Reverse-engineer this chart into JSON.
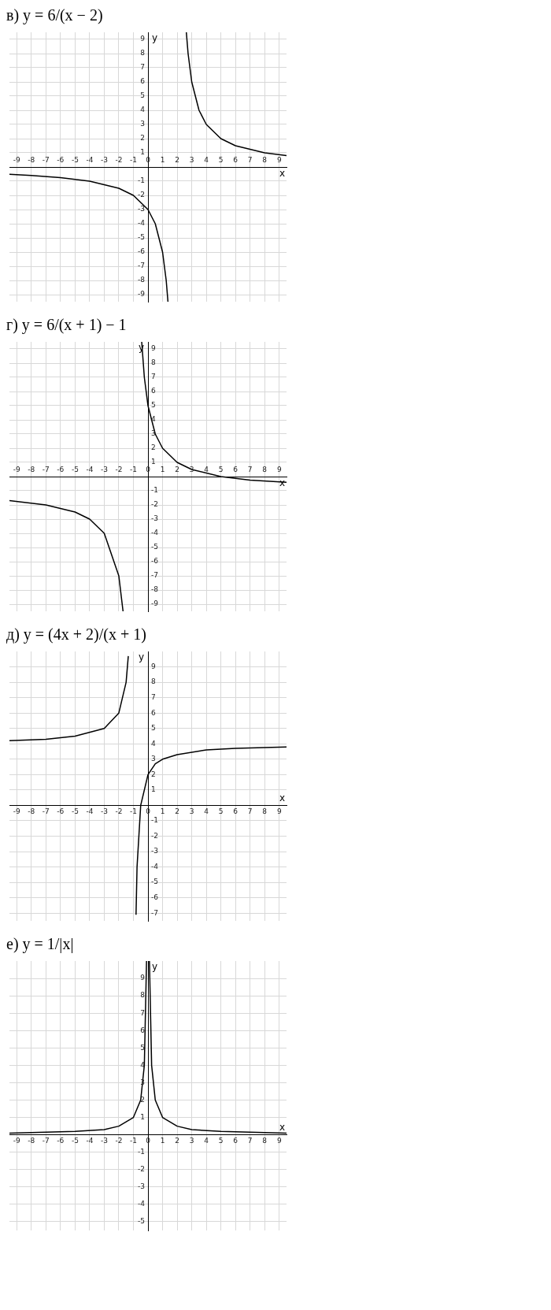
{
  "chart_data": [
    {
      "type": "line",
      "title": "в) y = 6/(x − 2)",
      "xlabel": "x",
      "ylabel": "y",
      "xlim": [
        -9.5,
        9.5
      ],
      "ylim": [
        -9.5,
        9.5
      ],
      "xticks": [
        -9,
        -8,
        -7,
        -6,
        -5,
        -4,
        -3,
        -2,
        -1,
        0,
        1,
        2,
        3,
        4,
        5,
        6,
        7,
        8,
        9
      ],
      "yticks": [
        -9,
        -8,
        -7,
        -6,
        -5,
        -4,
        -3,
        -2,
        -1,
        1,
        2,
        3,
        4,
        5,
        6,
        7,
        8,
        9
      ],
      "grid": true,
      "legend": false,
      "marker": "none",
      "series": [
        {
          "color": "#000000",
          "x": [
            -9.5,
            -8,
            -6,
            -4,
            -2,
            -1,
            0,
            0.5,
            1,
            1.25,
            1.37
          ],
          "values": [
            -0.52,
            -0.6,
            -0.75,
            -1,
            -1.5,
            -2,
            -3,
            -4,
            -6,
            -8,
            -9.5
          ]
        },
        {
          "color": "#000000",
          "x": [
            2.63,
            2.75,
            3,
            3.5,
            4,
            5,
            6,
            8,
            9.5
          ],
          "values": [
            9.5,
            8,
            6,
            4,
            3,
            2,
            1.5,
            1,
            0.8
          ]
        }
      ]
    },
    {
      "type": "line",
      "title": "г) y = 6/(x + 1) − 1",
      "xlabel": "x",
      "ylabel": "y",
      "xlim": [
        -9.5,
        9.5
      ],
      "ylim": [
        -9.5,
        9.5
      ],
      "xticks": [
        -9,
        -8,
        -7,
        -6,
        -5,
        -4,
        -3,
        -2,
        -1,
        0,
        1,
        2,
        3,
        4,
        5,
        6,
        7,
        8,
        9
      ],
      "yticks": [
        -9,
        -8,
        -7,
        -6,
        -5,
        -4,
        -3,
        -2,
        -1,
        1,
        2,
        3,
        4,
        5,
        6,
        7,
        8,
        9
      ],
      "grid": true,
      "legend": false,
      "marker": "none",
      "series": [
        {
          "color": "#000000",
          "x": [
            -9.5,
            -7,
            -5,
            -4,
            -3,
            -2,
            -1.71
          ],
          "values": [
            -1.7,
            -2,
            -2.5,
            -3,
            -4,
            -7,
            -9.5
          ]
        },
        {
          "color": "#000000",
          "x": [
            -0.43,
            -0.25,
            0,
            0.5,
            1,
            2,
            3,
            5,
            7,
            9.5
          ],
          "values": [
            9.5,
            7,
            5,
            3,
            2,
            1,
            0.5,
            0,
            -0.25,
            -0.4
          ]
        }
      ]
    },
    {
      "type": "line",
      "title": "д) y = (4x + 2)/(x + 1)",
      "xlabel": "x",
      "ylabel": "y",
      "xlim": [
        -9.5,
        9.5
      ],
      "ylim": [
        -7.5,
        10
      ],
      "xticks": [
        -9,
        -8,
        -7,
        -6,
        -5,
        -4,
        -3,
        -2,
        -1,
        0,
        1,
        2,
        3,
        4,
        5,
        6,
        7,
        8,
        9
      ],
      "yticks": [
        -7,
        -6,
        -5,
        -4,
        -3,
        -2,
        -1,
        1,
        2,
        3,
        4,
        5,
        6,
        7,
        8,
        9
      ],
      "grid": true,
      "legend": false,
      "marker": "none",
      "series": [
        {
          "color": "#000000",
          "x": [
            -9.5,
            -7,
            -5,
            -3,
            -2,
            -1.5,
            -1.35
          ],
          "values": [
            4.2,
            4.3,
            4.5,
            5,
            6,
            8,
            9.7
          ]
        },
        {
          "color": "#000000",
          "x": [
            -0.82,
            -0.75,
            -0.5,
            0,
            0.5,
            1,
            2,
            4,
            6,
            9.5
          ],
          "values": [
            -7.1,
            -4,
            0,
            2,
            2.7,
            3,
            3.3,
            3.6,
            3.7,
            3.8
          ]
        }
      ]
    },
    {
      "type": "line",
      "title": "е) y = 1/|x|",
      "xlabel": "x",
      "ylabel": "y",
      "xlim": [
        -9.5,
        9.5
      ],
      "ylim": [
        -5.5,
        10
      ],
      "xticks": [
        -9,
        -8,
        -7,
        -6,
        -5,
        -4,
        -3,
        -2,
        -1,
        0,
        1,
        2,
        3,
        4,
        5,
        6,
        7,
        8,
        9
      ],
      "yticks": [
        -5,
        -4,
        -3,
        -2,
        -1,
        1,
        2,
        3,
        4,
        5,
        6,
        7,
        8,
        9
      ],
      "grid": true,
      "legend": false,
      "marker": "none",
      "series": [
        {
          "color": "#000000",
          "x": [
            -9.5,
            -5,
            -3,
            -2,
            -1,
            -0.5,
            -0.25,
            -0.1
          ],
          "values": [
            0.1,
            0.2,
            0.3,
            0.5,
            1,
            2,
            4,
            10
          ]
        },
        {
          "color": "#000000",
          "x": [
            0.1,
            0.25,
            0.5,
            1,
            2,
            3,
            5,
            9.5
          ],
          "values": [
            10,
            4,
            2,
            1,
            0.5,
            0.3,
            0.2,
            0.1
          ]
        }
      ]
    }
  ]
}
